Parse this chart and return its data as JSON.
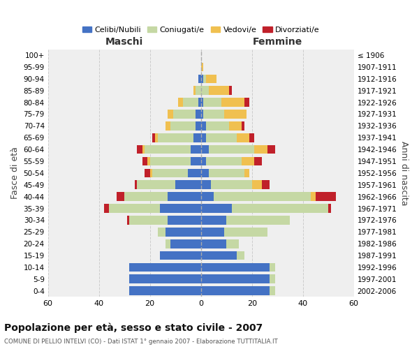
{
  "age_groups": [
    "0-4",
    "5-9",
    "10-14",
    "15-19",
    "20-24",
    "25-29",
    "30-34",
    "35-39",
    "40-44",
    "45-49",
    "50-54",
    "55-59",
    "60-64",
    "65-69",
    "70-74",
    "75-79",
    "80-84",
    "85-89",
    "90-94",
    "95-99",
    "100+"
  ],
  "birth_years": [
    "2002-2006",
    "1997-2001",
    "1992-1996",
    "1987-1991",
    "1982-1986",
    "1977-1981",
    "1972-1976",
    "1967-1971",
    "1962-1966",
    "1957-1961",
    "1952-1956",
    "1947-1951",
    "1942-1946",
    "1937-1941",
    "1932-1936",
    "1927-1931",
    "1922-1926",
    "1917-1921",
    "1912-1916",
    "1907-1911",
    "≤ 1906"
  ],
  "maschi": {
    "celibi": [
      28,
      28,
      28,
      16,
      12,
      14,
      13,
      16,
      13,
      10,
      5,
      4,
      4,
      3,
      2,
      2,
      1,
      0,
      1,
      0,
      0
    ],
    "coniugati": [
      0,
      0,
      0,
      0,
      2,
      3,
      15,
      20,
      17,
      15,
      14,
      16,
      18,
      14,
      10,
      9,
      6,
      2,
      0,
      0,
      0
    ],
    "vedovi": [
      0,
      0,
      0,
      0,
      0,
      0,
      0,
      0,
      0,
      0,
      1,
      1,
      1,
      1,
      2,
      2,
      2,
      1,
      0,
      0,
      0
    ],
    "divorziati": [
      0,
      0,
      0,
      0,
      0,
      0,
      1,
      2,
      3,
      1,
      2,
      2,
      2,
      1,
      0,
      0,
      0,
      0,
      0,
      0,
      0
    ]
  },
  "femmine": {
    "nubili": [
      27,
      27,
      27,
      14,
      10,
      9,
      10,
      12,
      5,
      4,
      3,
      2,
      3,
      2,
      2,
      1,
      1,
      0,
      1,
      0,
      0
    ],
    "coniugate": [
      2,
      2,
      2,
      3,
      5,
      17,
      25,
      38,
      38,
      16,
      14,
      14,
      18,
      12,
      9,
      8,
      7,
      3,
      1,
      0,
      0
    ],
    "vedove": [
      0,
      0,
      0,
      0,
      0,
      0,
      0,
      0,
      2,
      4,
      2,
      5,
      5,
      5,
      5,
      9,
      9,
      8,
      4,
      1,
      0
    ],
    "divorziate": [
      0,
      0,
      0,
      0,
      0,
      0,
      0,
      1,
      8,
      3,
      0,
      3,
      3,
      2,
      1,
      0,
      2,
      1,
      0,
      0,
      0
    ]
  },
  "colors": {
    "celibi": "#4472c4",
    "coniugati": "#c5d8a4",
    "vedovi": "#f0c050",
    "divorziati": "#c0202a"
  },
  "xlim": 60,
  "title": "Popolazione per età, sesso e stato civile - 2007",
  "subtitle": "COMUNE DI PELLIO INTELVI (CO) - Dati ISTAT 1° gennaio 2007 - Elaborazione TUTTITALIA.IT",
  "xlabel_left": "Maschi",
  "xlabel_right": "Femmine",
  "ylabel_left": "Fasce di età",
  "ylabel_right": "Anni di nascita",
  "legend_labels": [
    "Celibi/Nubili",
    "Coniugati/e",
    "Vedovi/e",
    "Divorziati/e"
  ],
  "background_color": "#ffffff",
  "bar_height": 0.75
}
